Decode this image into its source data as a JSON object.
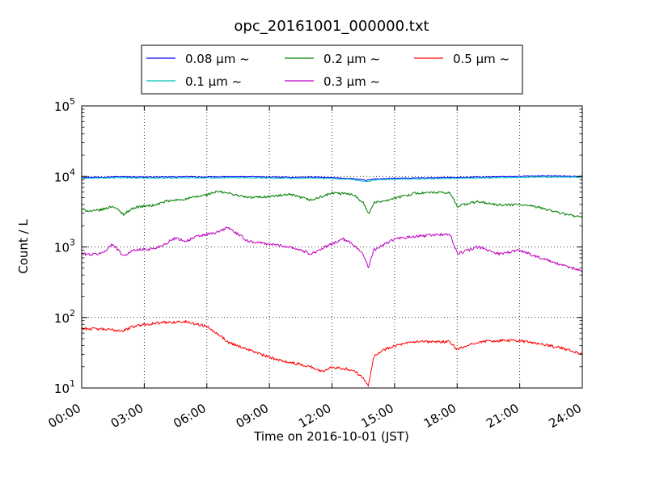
{
  "chart_data": {
    "type": "line",
    "title": "opc_20161001_000000.txt",
    "xlabel": "Time on 2016-10-01 (JST)",
    "ylabel": "Count / L",
    "yscale": "log",
    "ylim": [
      10,
      100000
    ],
    "xlim": [
      "00:00",
      "24:00"
    ],
    "grid": true,
    "legend_position": "top-center",
    "xticks": [
      "00:00",
      "03:00",
      "06:00",
      "09:00",
      "12:00",
      "15:00",
      "18:00",
      "21:00",
      "24:00"
    ],
    "yticks": [
      {
        "base": "10",
        "exp": "1"
      },
      {
        "base": "10",
        "exp": "2"
      },
      {
        "base": "10",
        "exp": "3"
      },
      {
        "base": "10",
        "exp": "4"
      },
      {
        "base": "10",
        "exp": "5"
      }
    ],
    "series": [
      {
        "name": "0.08 μm ~",
        "color": "#0000ff",
        "x": [
          "00:00",
          "01:00",
          "02:00",
          "03:00",
          "04:00",
          "05:00",
          "06:00",
          "07:00",
          "08:00",
          "09:00",
          "10:00",
          "11:00",
          "12:00",
          "13:00",
          "13:40",
          "14:00",
          "15:00",
          "16:00",
          "17:00",
          "18:00",
          "19:00",
          "20:00",
          "21:00",
          "22:00",
          "23:00",
          "24:00"
        ],
        "y": [
          9700,
          9800,
          9900,
          9800,
          9800,
          9900,
          9800,
          9900,
          9900,
          9800,
          9700,
          9800,
          9600,
          9300,
          8800,
          9200,
          9400,
          9500,
          9600,
          9700,
          9800,
          9900,
          10000,
          10200,
          10100,
          10000
        ]
      },
      {
        "name": "0.1 μm ~",
        "color": "#00bfbf",
        "x": [
          "00:00",
          "01:00",
          "02:00",
          "03:00",
          "04:00",
          "05:00",
          "06:00",
          "07:00",
          "08:00",
          "09:00",
          "10:00",
          "11:00",
          "12:00",
          "13:00",
          "13:40",
          "14:00",
          "15:00",
          "16:00",
          "17:00",
          "18:00",
          "19:00",
          "20:00",
          "21:00",
          "22:00",
          "23:00",
          "24:00"
        ],
        "y": [
          9400,
          9500,
          9600,
          9500,
          9500,
          9600,
          9500,
          9600,
          9600,
          9500,
          9400,
          9500,
          9300,
          9000,
          8400,
          8900,
          9100,
          9200,
          9300,
          9400,
          9500,
          9600,
          9700,
          9800,
          9800,
          9700
        ]
      },
      {
        "name": "0.2 μm ~",
        "color": "#007f00",
        "x": [
          "00:00",
          "00:30",
          "01:00",
          "01:30",
          "02:00",
          "02:30",
          "03:00",
          "03:30",
          "04:00",
          "05:00",
          "06:00",
          "06:30",
          "07:00",
          "08:00",
          "09:00",
          "10:00",
          "11:00",
          "12:00",
          "13:00",
          "13:30",
          "13:45",
          "14:00",
          "15:00",
          "16:00",
          "17:00",
          "17:40",
          "18:00",
          "19:00",
          "20:00",
          "21:00",
          "22:00",
          "23:00",
          "24:00"
        ],
        "y": [
          3400,
          3200,
          3400,
          3800,
          2900,
          3600,
          3800,
          3900,
          4400,
          4800,
          5500,
          6100,
          5800,
          5000,
          5200,
          5500,
          4600,
          5800,
          5600,
          4300,
          2900,
          4200,
          4900,
          5800,
          5900,
          5800,
          3800,
          4400,
          3900,
          4000,
          3600,
          3000,
          2600
        ]
      },
      {
        "name": "0.3 μm ~",
        "color": "#bf00bf",
        "x": [
          "00:00",
          "00:30",
          "01:00",
          "01:30",
          "02:00",
          "02:30",
          "03:00",
          "03:30",
          "04:00",
          "04:30",
          "05:00",
          "05:30",
          "06:00",
          "06:30",
          "07:00",
          "07:30",
          "08:00",
          "09:00",
          "10:00",
          "10:30",
          "11:00",
          "12:00",
          "12:30",
          "13:00",
          "13:30",
          "13:45",
          "14:00",
          "15:00",
          "16:00",
          "17:00",
          "17:40",
          "18:00",
          "19:00",
          "20:00",
          "21:00",
          "22:00",
          "23:00",
          "24:00"
        ],
        "y": [
          800,
          780,
          820,
          1100,
          750,
          900,
          920,
          950,
          1100,
          1350,
          1200,
          1400,
          1500,
          1600,
          1900,
          1500,
          1200,
          1100,
          1000,
          900,
          800,
          1100,
          1300,
          1100,
          800,
          500,
          900,
          1300,
          1400,
          1500,
          1500,
          800,
          1000,
          800,
          900,
          700,
          550,
          460
        ]
      },
      {
        "name": "0.5 μm ~",
        "color": "#ff0000",
        "x": [
          "00:00",
          "01:00",
          "02:00",
          "02:30",
          "03:00",
          "04:00",
          "05:00",
          "06:00",
          "06:30",
          "07:00",
          "08:00",
          "09:00",
          "10:00",
          "11:00",
          "11:30",
          "12:00",
          "13:00",
          "13:30",
          "13:45",
          "14:00",
          "14:30",
          "15:00",
          "16:00",
          "17:00",
          "17:40",
          "18:00",
          "19:00",
          "20:00",
          "21:00",
          "22:00",
          "23:00",
          "24:00"
        ],
        "y": [
          70,
          68,
          65,
          75,
          80,
          85,
          87,
          75,
          60,
          45,
          35,
          27,
          23,
          20,
          17,
          20,
          18,
          14,
          11,
          28,
          35,
          40,
          45,
          45,
          45,
          35,
          45,
          47,
          47,
          42,
          37,
          30
        ]
      }
    ]
  }
}
